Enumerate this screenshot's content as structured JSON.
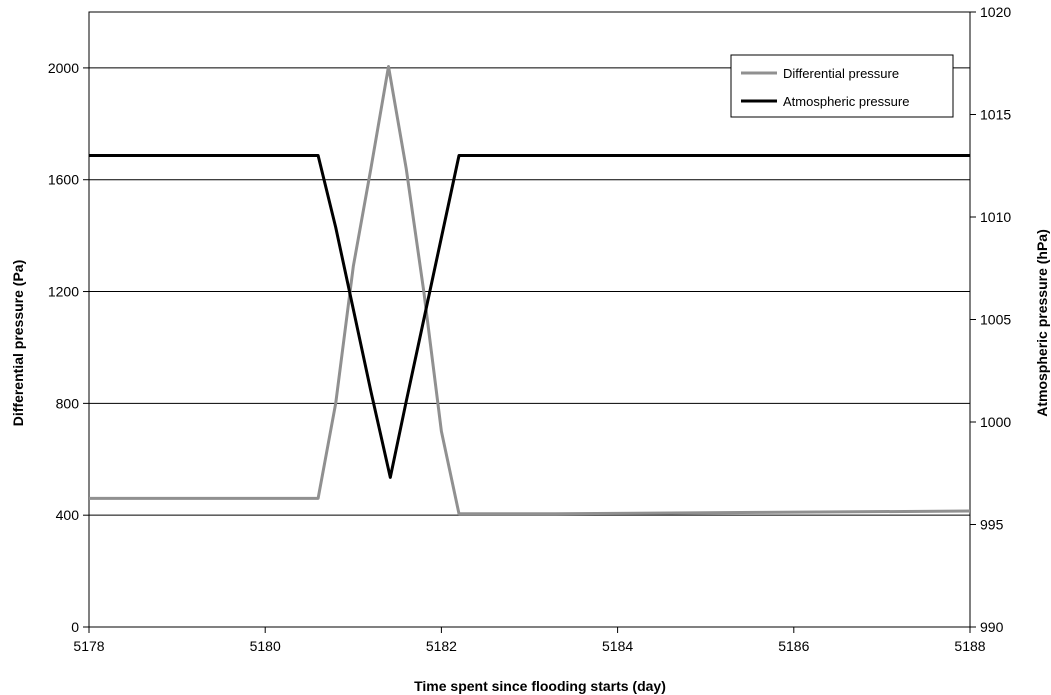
{
  "chart_data": {
    "type": "line",
    "title": "",
    "xlabel": "Time spent since flooding starts (day)",
    "ylabel_left": "Differential pressure (Pa)",
    "ylabel_right": "Atmospheric pressure (hPa)",
    "xlim": [
      5178,
      5188
    ],
    "ylim_left": [
      0,
      2200
    ],
    "ylim_right": [
      990,
      1020
    ],
    "x_ticks": [
      "5178",
      "5180",
      "5182",
      "5184",
      "5186",
      "5188"
    ],
    "y_left_ticks": [
      "0",
      "400",
      "800",
      "1200",
      "1600",
      "2000"
    ],
    "y_right_ticks": [
      "990",
      "995",
      "1000",
      "1005",
      "1010",
      "1015",
      "1020"
    ],
    "grid": "horizontal",
    "legend_position": "top-right",
    "series": [
      {
        "name": "Differential pressure",
        "axis": "left",
        "color": "#909090",
        "x": [
          5178,
          5180.6,
          5180.8,
          5181.0,
          5181.2,
          5181.4,
          5181.6,
          5181.8,
          5182.0,
          5182.2,
          5183.3,
          5184.8,
          5185.6,
          5186.7,
          5188
        ],
        "y": [
          460,
          460,
          800,
          1290,
          1640,
          2005,
          1640,
          1200,
          700,
          405,
          405,
          408,
          410,
          412,
          415
        ]
      },
      {
        "name": "Atmospheric pressure",
        "axis": "right",
        "color": "#000000",
        "x": [
          5178,
          5180.6,
          5180.8,
          5181.0,
          5181.2,
          5181.42,
          5181.6,
          5181.8,
          5182.0,
          5182.2,
          5188
        ],
        "y": [
          1013,
          1013,
          1009.5,
          1005.5,
          1001.5,
          997.3,
          1001,
          1005,
          1009,
          1013,
          1013
        ]
      }
    ]
  }
}
